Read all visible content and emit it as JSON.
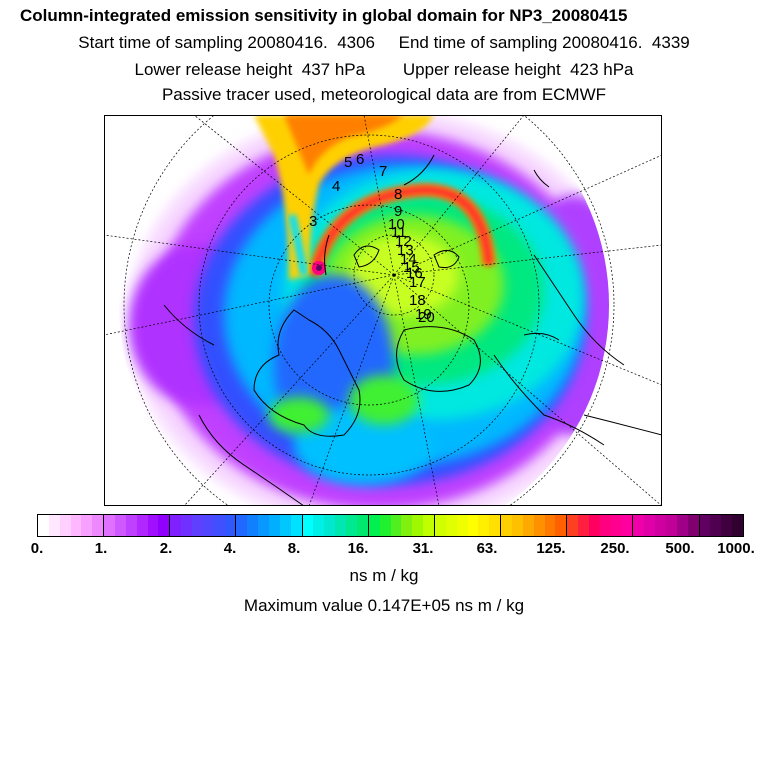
{
  "title": "Column-integrated emission sensitivity in global domain for NP3_20080415",
  "sampling": {
    "start": "Start time of sampling 20080416.  4306",
    "end": "End time of sampling 20080416.  4339"
  },
  "release": {
    "lower": "Lower release height  437 hPa",
    "upper": "Upper release height  423 hPa"
  },
  "note": "Passive tracer used, meteorological data are from ECMWF",
  "track_labels": [
    "3",
    "4",
    "5",
    "6",
    "7",
    "8",
    "9",
    "10",
    "11",
    "12",
    "13",
    "14",
    "15",
    "16",
    "17",
    "18",
    "19",
    "20"
  ],
  "colorbar": {
    "ticks": [
      "0.",
      "1.",
      "2.",
      "4.",
      "8.",
      "16.",
      "31.",
      "63.",
      "125.",
      "250.",
      "500.",
      "1000."
    ],
    "unit": "ns m / kg",
    "colors": [
      "#ffffff",
      "#ffe8ff",
      "#ffd0ff",
      "#ffb8ff",
      "#f7a0ff",
      "#ee88ff",
      "#e070ff",
      "#d058ff",
      "#c040ff",
      "#b028ff",
      "#a010ff",
      "#9000ff",
      "#8020ff",
      "#7030ff",
      "#6040ff",
      "#5048ff",
      "#4050ff",
      "#3058ff",
      "#2068ff",
      "#1080ff",
      "#0898ff",
      "#00b0ff",
      "#00c8ff",
      "#00e0ff",
      "#00ffff",
      "#00f0e8",
      "#00e8d0",
      "#00e8b0",
      "#00e890",
      "#00e870",
      "#00f050",
      "#20f030",
      "#50f020",
      "#80f010",
      "#a0f800",
      "#c0ff00",
      "#d0ff00",
      "#e0ff00",
      "#f0ff00",
      "#ffff00",
      "#fff000",
      "#ffe000",
      "#ffd000",
      "#ffc000",
      "#ffa800",
      "#ff9000",
      "#ff7800",
      "#ff6000",
      "#ff4020",
      "#ff2040",
      "#ff0060",
      "#ff0080",
      "#ff0090",
      "#ff00a0",
      "#f000a8",
      "#e000a8",
      "#d000a0",
      "#c00098",
      "#a00088",
      "#800070",
      "#600060",
      "#500050",
      "#400040",
      "#300030"
    ]
  },
  "maximum": "Maximum value  0.147E+05 ns m / kg"
}
